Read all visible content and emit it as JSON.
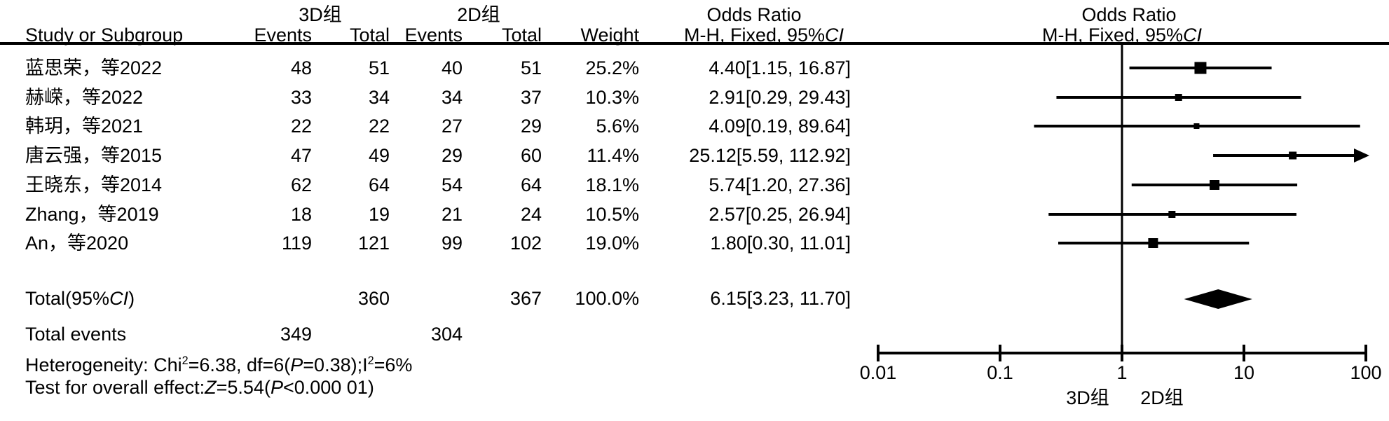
{
  "figure": {
    "header": {
      "group_3d": "3D组",
      "group_2d": "2D组",
      "odds_ratio_title": "Odds Ratio",
      "col_study": "Study or Subgroup",
      "col_events": "Events",
      "col_total": "Total",
      "col_weight": "Weight",
      "mh_fixed_ci": [
        {
          "t": "M-H, Fixed, 95%"
        },
        {
          "t": "CI",
          "i": true
        }
      ]
    },
    "summary": {
      "total_label": [
        {
          "t": "Total(95%"
        },
        {
          "t": "CI",
          "i": true
        },
        {
          "t": ")"
        }
      ],
      "total_events_label": "Total events",
      "heterogeneity": [
        {
          "t": "Heterogeneity: Chi"
        },
        {
          "t": "2",
          "sup": true
        },
        {
          "t": "=6.38, df=6("
        },
        {
          "t": "P",
          "i": true
        },
        {
          "t": "=0.38);I"
        },
        {
          "t": "2",
          "sup": true
        },
        {
          "t": "=6%"
        }
      ],
      "overall_effect": [
        {
          "t": "Test for overall effect:"
        },
        {
          "t": "Z",
          "i": true
        },
        {
          "t": "=5.54("
        },
        {
          "t": "P",
          "i": true
        },
        {
          "t": "<0.000 01)"
        }
      ]
    }
  },
  "chart_data": {
    "type": "forest",
    "effect_measure": "Odds Ratio, M-H, Fixed, 95% CI",
    "x_scale": "log10",
    "x_range": [
      0.01,
      100
    ],
    "x_ticks": [
      0.01,
      0.1,
      1,
      10,
      100
    ],
    "null_line": 1,
    "axis_left_label": "3D组",
    "axis_right_label": "2D组",
    "studies": [
      {
        "label": "蓝思荣，等2022",
        "events_3d": 48,
        "total_3d": 51,
        "events_2d": 40,
        "total_2d": 51,
        "weight_text": "25.2%",
        "weight_pct": 25.2,
        "or": 4.4,
        "ci_low": 1.15,
        "ci_high": 16.87,
        "or_text": "4.40[1.15, 16.87]"
      },
      {
        "label": "赫嵘，等2022",
        "events_3d": 33,
        "total_3d": 34,
        "events_2d": 34,
        "total_2d": 37,
        "weight_text": "10.3%",
        "weight_pct": 10.3,
        "or": 2.91,
        "ci_low": 0.29,
        "ci_high": 29.43,
        "or_text": "2.91[0.29, 29.43]"
      },
      {
        "label": "韩玥，等2021",
        "events_3d": 22,
        "total_3d": 22,
        "events_2d": 27,
        "total_2d": 29,
        "weight_text": "5.6%",
        "weight_pct": 5.6,
        "or": 4.09,
        "ci_low": 0.19,
        "ci_high": 89.64,
        "or_text": "4.09[0.19, 89.64]"
      },
      {
        "label": "唐云强，等2015",
        "events_3d": 47,
        "total_3d": 49,
        "events_2d": 29,
        "total_2d": 60,
        "weight_text": "11.4%",
        "weight_pct": 11.4,
        "or": 25.12,
        "ci_low": 5.59,
        "ci_high": 112.92,
        "or_text": "25.12[5.59, 112.92]"
      },
      {
        "label": "王晓东，等2014",
        "events_3d": 62,
        "total_3d": 64,
        "events_2d": 54,
        "total_2d": 64,
        "weight_text": "18.1%",
        "weight_pct": 18.1,
        "or": 5.74,
        "ci_low": 1.2,
        "ci_high": 27.36,
        "or_text": "5.74[1.20, 27.36]"
      },
      {
        "label": "Zhang，等2019",
        "events_3d": 18,
        "total_3d": 19,
        "events_2d": 21,
        "total_2d": 24,
        "weight_text": "10.5%",
        "weight_pct": 10.5,
        "or": 2.57,
        "ci_low": 0.25,
        "ci_high": 26.94,
        "or_text": "2.57[0.25, 26.94]"
      },
      {
        "label": "An，等2020",
        "events_3d": 119,
        "total_3d": 121,
        "events_2d": 99,
        "total_2d": 102,
        "weight_text": "19.0%",
        "weight_pct": 19.0,
        "or": 1.8,
        "ci_low": 0.3,
        "ci_high": 11.01,
        "or_text": "1.80[0.30, 11.01]"
      }
    ],
    "total": {
      "total_3d": 360,
      "total_2d": 367,
      "events_3d": 349,
      "events_2d": 304,
      "weight_text": "100.0%",
      "weight_pct": 100.0,
      "or": 6.15,
      "ci_low": 3.23,
      "ci_high": 11.7,
      "or_text": "6.15[3.23, 11.70]"
    },
    "heterogeneity_text": "Heterogeneity: Chi²=6.38, df=6(P=0.38);I²=6%",
    "overall_effect_text": "Test for overall effect:Z=5.54(P<0.000 01)"
  }
}
